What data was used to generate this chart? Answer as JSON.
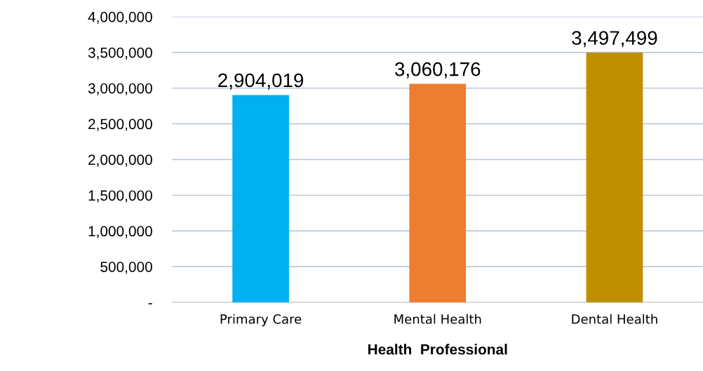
{
  "chart_data": {
    "type": "bar",
    "xlabel": "Health  Professional",
    "categories": [
      "Primary Care",
      "Mental Health",
      "Dental Health"
    ],
    "values": [
      2904019,
      3060176,
      3497499
    ],
    "colors": [
      "#00b0f0",
      "#ed7d31",
      "#bf8f00"
    ],
    "ylim": [
      0,
      4000000
    ],
    "yticks": [
      {
        "value": 0,
        "label": "-"
      },
      {
        "value": 500000,
        "label": "500,000"
      },
      {
        "value": 1000000,
        "label": "1,000,000"
      },
      {
        "value": 1500000,
        "label": "1,500,000"
      },
      {
        "value": 2000000,
        "label": "2,000,000"
      },
      {
        "value": 2500000,
        "label": "2,500,000"
      },
      {
        "value": 3000000,
        "label": "3,000,000"
      },
      {
        "value": 3500000,
        "label": "3,500,000"
      },
      {
        "value": 4000000,
        "label": "4,000,000"
      }
    ],
    "value_labels": [
      "2,904,019",
      "3,060,176",
      "3,497,499"
    ],
    "grid": "y",
    "legend": false
  }
}
